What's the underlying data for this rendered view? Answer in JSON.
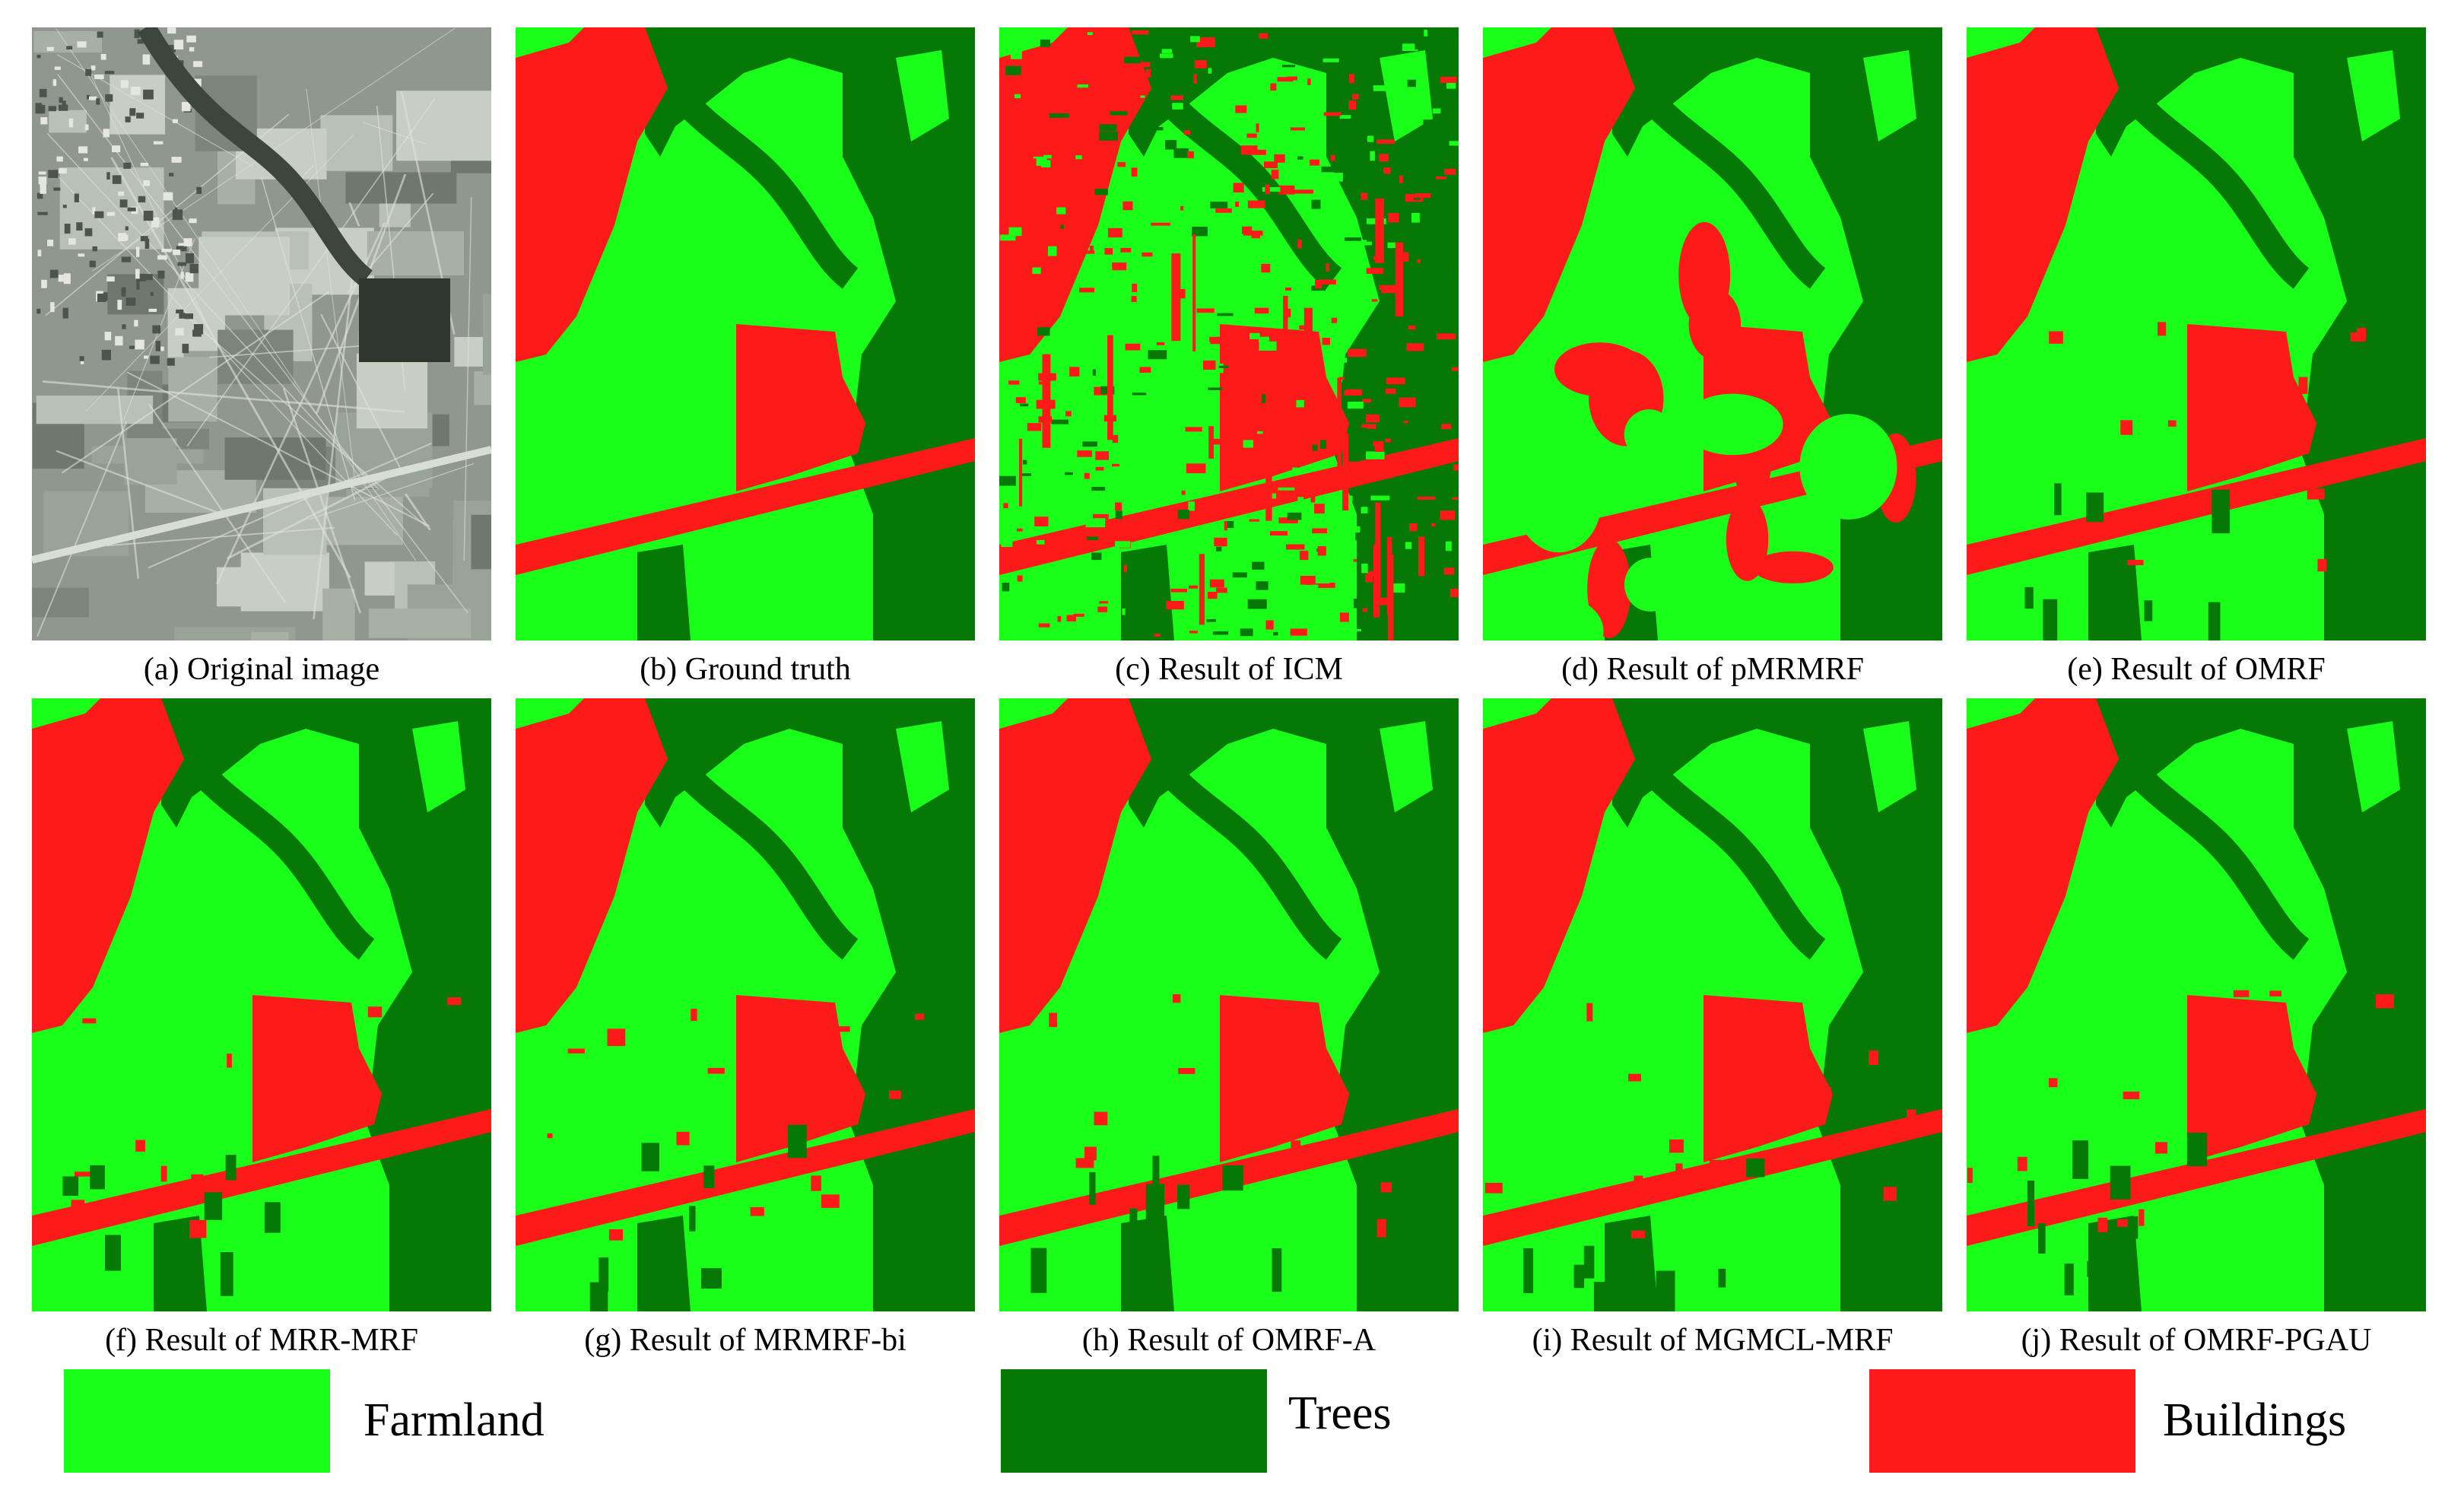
{
  "colors": {
    "farmland": "#1aff1a",
    "trees": "#057805",
    "buildings": "#ff1a1a",
    "aerial": "#8a948a"
  },
  "panels": [
    {
      "id": "a",
      "caption": "(a) Original image",
      "kind": "aerial"
    },
    {
      "id": "b",
      "caption": "(b) Ground truth",
      "kind": "truth"
    },
    {
      "id": "c",
      "caption": "(c) Result of ICM",
      "kind": "noisy"
    },
    {
      "id": "d",
      "caption": "(d) Result of pMRMRF",
      "kind": "blobby"
    },
    {
      "id": "e",
      "caption": "(e) Result of OMRF",
      "kind": "result"
    },
    {
      "id": "f",
      "caption": "(f) Result of MRR-MRF",
      "kind": "result"
    },
    {
      "id": "g",
      "caption": "(g) Result of MRMRF-bi",
      "kind": "result"
    },
    {
      "id": "h",
      "caption": "(h) Result of OMRF-A",
      "kind": "result"
    },
    {
      "id": "i",
      "caption": "(i) Result of MGMCL-MRF",
      "kind": "result"
    },
    {
      "id": "j",
      "caption": "(j) Result of OMRF-PGAU",
      "kind": "result"
    }
  ],
  "legend": {
    "farmland": "Farmland",
    "trees": "Trees",
    "buildings": "Buildings"
  }
}
